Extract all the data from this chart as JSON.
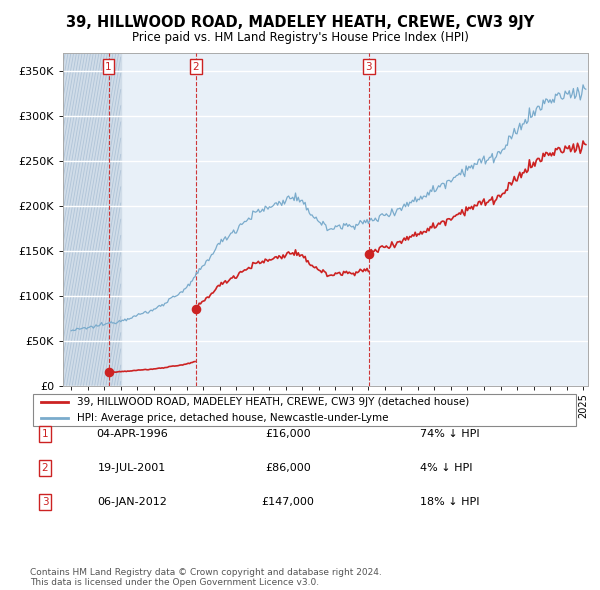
{
  "title": "39, HILLWOOD ROAD, MADELEY HEATH, CREWE, CW3 9JY",
  "subtitle": "Price paid vs. HM Land Registry's House Price Index (HPI)",
  "property_label": "39, HILLWOOD ROAD, MADELEY HEATH, CREWE, CW3 9JY (detached house)",
  "hpi_label": "HPI: Average price, detached house, Newcastle-under-Lyme",
  "footer1": "Contains HM Land Registry data © Crown copyright and database right 2024.",
  "footer2": "This data is licensed under the Open Government Licence v3.0.",
  "transactions": [
    {
      "num": 1,
      "date": "04-APR-1996",
      "price": 16000,
      "pct": "74%",
      "dir": "↓"
    },
    {
      "num": 2,
      "date": "19-JUL-2001",
      "price": 86000,
      "pct": "4%",
      "dir": "↓"
    },
    {
      "num": 3,
      "date": "06-JAN-2012",
      "price": 147000,
      "pct": "18%",
      "dir": "↓"
    }
  ],
  "sale_years": [
    1996.26,
    2001.54,
    2012.01
  ],
  "sale_prices": [
    16000,
    86000,
    147000
  ],
  "ylim": [
    0,
    370000
  ],
  "yticks": [
    0,
    50000,
    100000,
    150000,
    200000,
    250000,
    300000,
    350000
  ],
  "ytick_labels": [
    "£0",
    "£50K",
    "£100K",
    "£150K",
    "£200K",
    "£250K",
    "£300K",
    "£350K"
  ],
  "property_color": "#cc2222",
  "hpi_color": "#7aabcc",
  "plot_bg": "#e8f0f8",
  "hatch_bg": "#d0dce8"
}
